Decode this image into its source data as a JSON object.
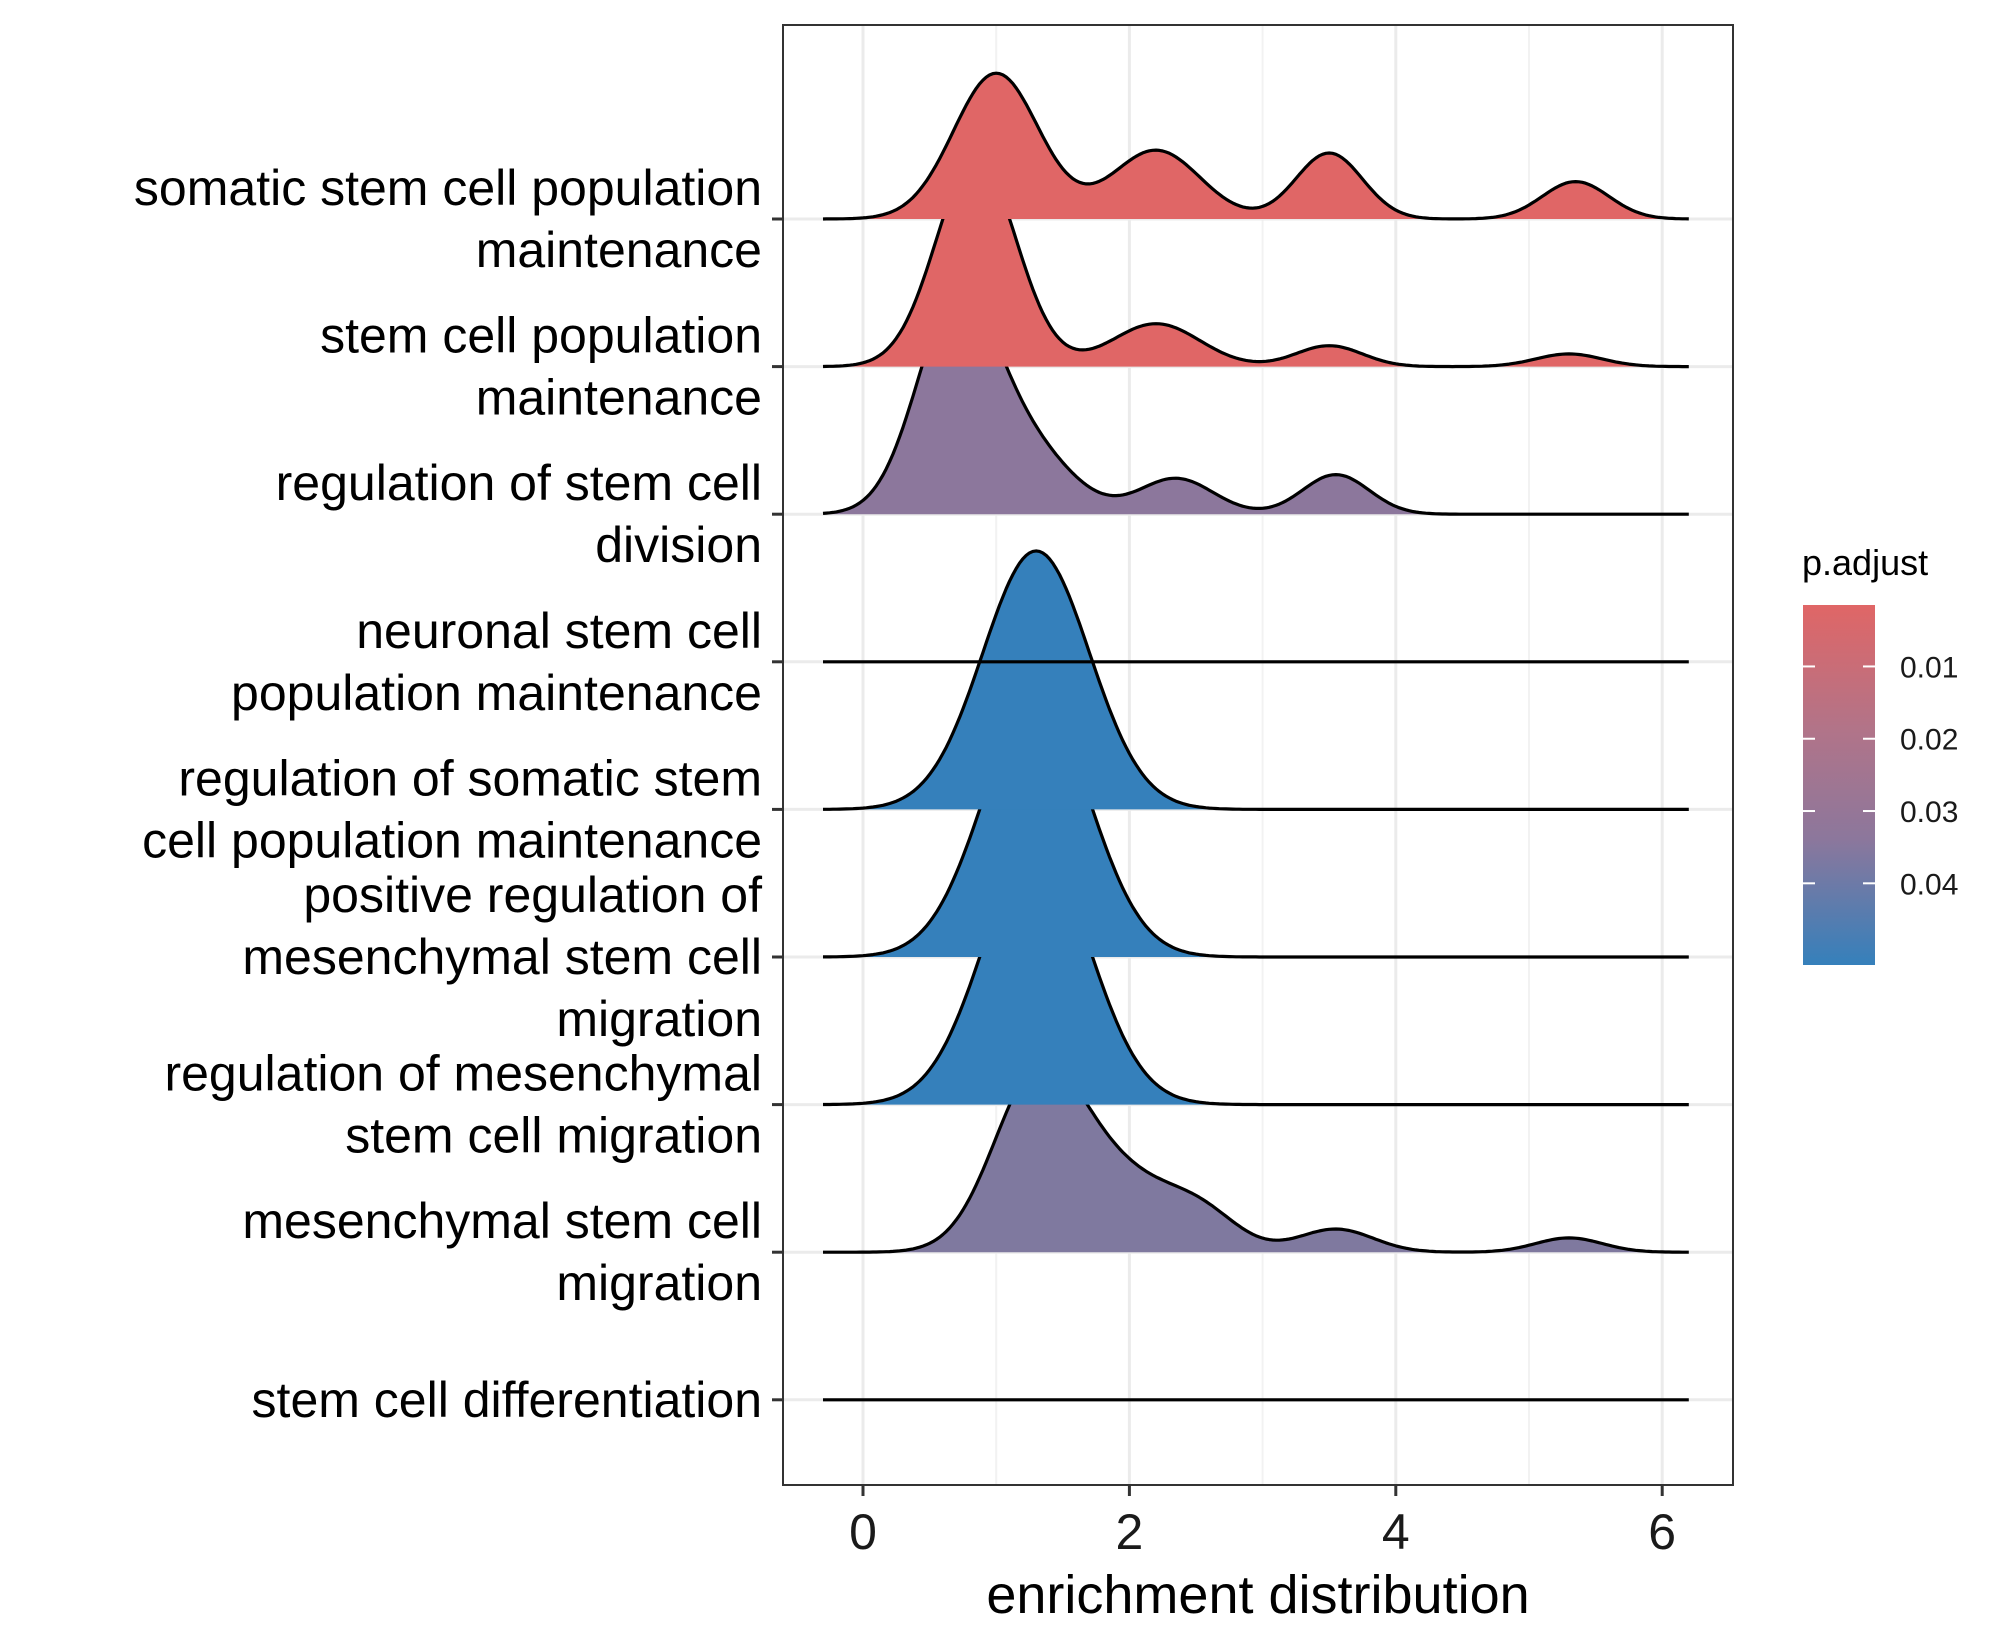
{
  "chart_data": {
    "type": "ridgeline",
    "xlabel": "enrichment distribution",
    "xlim": [
      -0.3,
      6.2
    ],
    "xticks": [
      0,
      2,
      4,
      6
    ],
    "categories": [
      "somatic stem cell population maintenance",
      "stem cell population maintenance",
      "regulation of stem cell division",
      "neuronal stem cell population maintenance",
      "regulation of somatic stem cell population maintenance",
      "positive regulation of mesenchymal stem cell migration",
      "regulation of mesenchymal stem cell migration",
      "mesenchymal stem cell migration",
      "stem cell differentiation"
    ],
    "category_labels": [
      [
        "somatic stem cell population",
        "maintenance"
      ],
      [
        "stem cell population",
        "maintenance"
      ],
      [
        "regulation of stem cell",
        "division"
      ],
      [
        "neuronal stem cell",
        "population maintenance"
      ],
      [
        "regulation of somatic stem",
        "cell population maintenance"
      ],
      [
        "positive regulation of",
        "mesenchymal stem cell",
        "migration"
      ],
      [
        "regulation of mesenchymal",
        "stem cell migration"
      ],
      [
        "mesenchymal stem cell",
        "migration"
      ],
      [
        "stem cell differentiation"
      ]
    ],
    "series": [
      {
        "name": "somatic stem cell population maintenance",
        "p_adjust": 0.002,
        "color": "#E06666",
        "peaks": [
          [
            1.0,
            0.32,
            2.65
          ],
          [
            2.2,
            0.33,
            1.25
          ],
          [
            3.5,
            0.25,
            1.2
          ],
          [
            5.35,
            0.25,
            0.68
          ]
        ]
      },
      {
        "name": "stem cell population maintenance",
        "p_adjust": 0.002,
        "color": "#E06666",
        "peaks": [
          [
            0.85,
            0.3,
            3.8
          ],
          [
            2.2,
            0.33,
            0.78
          ],
          [
            3.5,
            0.25,
            0.38
          ],
          [
            5.3,
            0.25,
            0.23
          ]
        ]
      },
      {
        "name": "regulation of stem cell division",
        "p_adjust": 0.033,
        "color": "#8C779C",
        "peaks": [
          [
            0.7,
            0.3,
            3.8
          ],
          [
            1.25,
            0.33,
            1.1
          ],
          [
            2.35,
            0.28,
            0.65
          ],
          [
            3.55,
            0.25,
            0.72
          ]
        ]
      },
      {
        "name": "neuronal stem cell population maintenance",
        "p_adjust": 0.033,
        "color": "#8C779C",
        "peaks": []
      },
      {
        "name": "regulation of somatic stem cell population maintenance",
        "p_adjust": 0.048,
        "color": "#3580BB",
        "peaks": [
          [
            1.3,
            0.4,
            4.7
          ]
        ]
      },
      {
        "name": "positive regulation of mesenchymal stem cell migration",
        "p_adjust": 0.048,
        "color": "#3580BB",
        "peaks": [
          [
            1.3,
            0.4,
            4.7
          ]
        ]
      },
      {
        "name": "regulation of mesenchymal stem cell migration",
        "p_adjust": 0.048,
        "color": "#3580BB",
        "peaks": [
          [
            1.3,
            0.4,
            4.7
          ]
        ]
      },
      {
        "name": "mesenchymal stem cell migration",
        "p_adjust": 0.037,
        "color": "#7F799F",
        "peaks": [
          [
            1.3,
            0.33,
            2.95
          ],
          [
            1.9,
            0.42,
            1.35
          ],
          [
            2.55,
            0.28,
            0.55
          ],
          [
            3.55,
            0.28,
            0.42
          ],
          [
            5.3,
            0.25,
            0.26
          ]
        ]
      },
      {
        "name": "stem cell differentiation",
        "p_adjust": 0.037,
        "color": "#7F799F",
        "peaks": []
      }
    ],
    "legend": {
      "title": "p.adjust",
      "ticks": [
        "0.01",
        "0.02",
        "0.03",
        "0.04"
      ],
      "tick_values": [
        0.01,
        0.02,
        0.03,
        0.04
      ],
      "range": [
        0.0015,
        0.0513
      ],
      "colors": [
        "#E06666",
        "#3580BB"
      ],
      "placement": "right"
    },
    "grid": true
  }
}
